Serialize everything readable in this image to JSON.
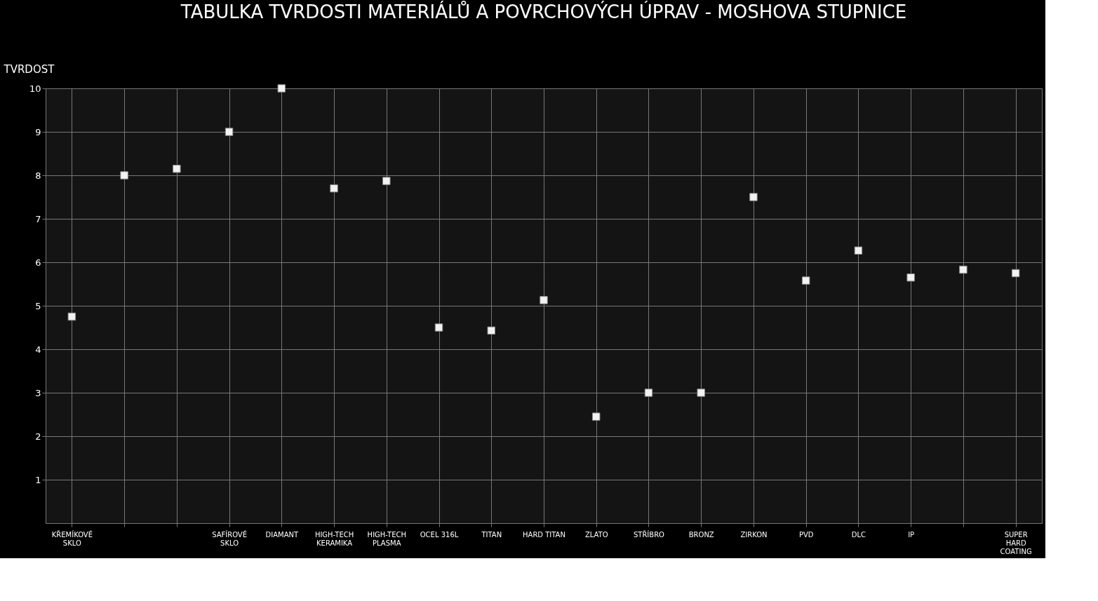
{
  "chart_data": {
    "type": "scatter",
    "title": "TABULKA TVRDOSTI MATERIÁLŮ A POVRCHOVÝCH ÚPRAV - MOSHOVA STUPNICE",
    "ylabel": "TVRDOST",
    "categories": [
      "KŘEMÍKOVÉ\nSKLO",
      null,
      null,
      "SAFÍROVÉ\nSKLO",
      "DIAMANT",
      "HIGH-TECH\nKERAMIKA",
      "HIGH-TECH\nPLASMA",
      "OCEL 316L",
      "TITAN",
      "HARD TITAN",
      "ZLATO",
      "STŘÍBRO",
      "BRONZ",
      "ZIRKON",
      "PVD",
      "DLC",
      "IP",
      null,
      "SUPER\nHARD\nCOATING"
    ],
    "values": [
      4.75,
      8.0,
      8.15,
      9.0,
      10.0,
      7.7,
      7.87,
      4.5,
      4.43,
      5.13,
      2.45,
      3.0,
      3.0,
      7.5,
      5.58,
      6.27,
      5.65,
      5.83,
      5.75
    ],
    "color": "#f2f2f2",
    "marker": "square",
    "ylim": [
      0,
      10
    ],
    "yticks": [
      1,
      2,
      3,
      4,
      5,
      6,
      7,
      8,
      9,
      10
    ],
    "grid": true
  }
}
